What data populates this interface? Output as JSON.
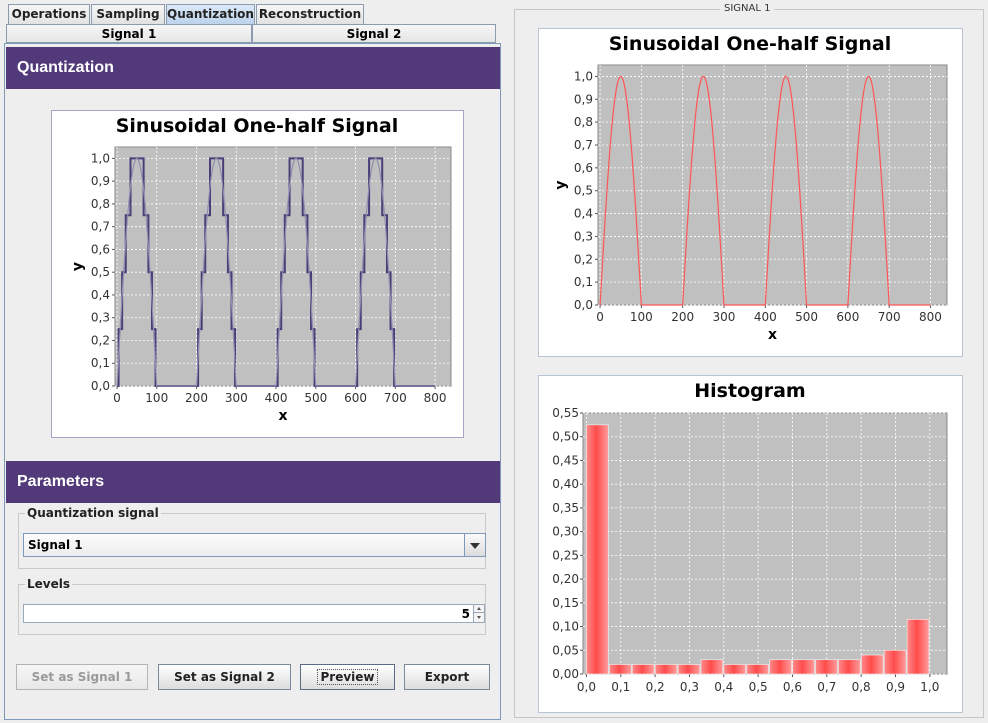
{
  "tabs": [
    "Operations",
    "Sampling",
    "Quantization",
    "Reconstruction"
  ],
  "active_tab": "Quantization",
  "signal_tabs": [
    "Signal 1",
    "Signal 2"
  ],
  "left": {
    "quantization_header": "Quantization",
    "parameters_header": "Parameters",
    "quantization_signal_label": "Quantization signal",
    "quantization_signal_value": "Signal 1",
    "levels_label": "Levels",
    "levels_value": "5",
    "buttons": {
      "set_signal1": "Set as Signal 1",
      "set_signal2": "Set as Signal 2",
      "preview": "Preview",
      "export": "Export"
    }
  },
  "right": {
    "group_title": "SIGNAL 1"
  },
  "colors": {
    "header_bg": "#523a7a",
    "plot_bg": "#c0c0c0",
    "signal_line": "#ff5555",
    "quant_line": "#4b3d78"
  },
  "chart_data": [
    {
      "id": "quantized",
      "type": "line",
      "title": "Sinusoidal One-half Signal",
      "xlabel": "x",
      "ylabel": "y",
      "xlim": [
        -5,
        840
      ],
      "ylim": [
        0,
        1.05
      ],
      "xticks": [
        "0",
        "100",
        "200",
        "300",
        "400",
        "500",
        "600",
        "700",
        "800"
      ],
      "yticks": [
        "0,0",
        "0,1",
        "0,2",
        "0,3",
        "0,4",
        "0,5",
        "0,6",
        "0,7",
        "0,8",
        "0,9",
        "1,0"
      ],
      "period": 200,
      "levels": 5,
      "series": [
        {
          "name": "quantized",
          "kind": "quantized"
        },
        {
          "name": "signal",
          "kind": "halfsine"
        }
      ]
    },
    {
      "id": "original",
      "type": "line",
      "title": "Sinusoidal One-half Signal",
      "xlabel": "x",
      "ylabel": "y",
      "xlim": [
        -5,
        840
      ],
      "ylim": [
        0,
        1.05
      ],
      "xticks": [
        "0",
        "100",
        "200",
        "300",
        "400",
        "500",
        "600",
        "700",
        "800"
      ],
      "yticks": [
        "0,0",
        "0,1",
        "0,2",
        "0,3",
        "0,4",
        "0,5",
        "0,6",
        "0,7",
        "0,8",
        "0,9",
        "1,0"
      ],
      "period": 200,
      "series": [
        {
          "name": "signal",
          "kind": "halfsine"
        }
      ]
    },
    {
      "id": "histogram",
      "type": "bar",
      "title": "Histogram",
      "xlim": [
        -0.01,
        1.05
      ],
      "ylim": [
        0,
        0.55
      ],
      "xticks": [
        "0,0",
        "0,1",
        "0,2",
        "0,3",
        "0,4",
        "0,5",
        "0,6",
        "0,7",
        "0,8",
        "0,9",
        "1,0"
      ],
      "yticks": [
        "0,00",
        "0,05",
        "0,10",
        "0,15",
        "0,20",
        "0,25",
        "0,30",
        "0,35",
        "0,40",
        "0,45",
        "0,50",
        "0,55"
      ],
      "bin_width": 0.0667,
      "values": [
        0.525,
        0.02,
        0.02,
        0.02,
        0.02,
        0.03,
        0.02,
        0.02,
        0.03,
        0.03,
        0.03,
        0.03,
        0.04,
        0.05,
        0.115
      ]
    }
  ]
}
